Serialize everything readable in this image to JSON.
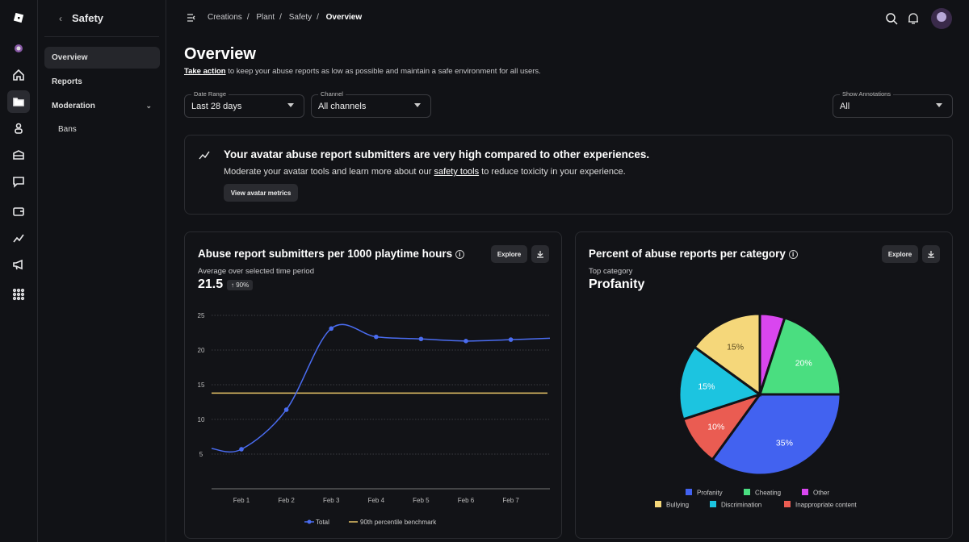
{
  "rail": {
    "icons": [
      "roblox-logo-icon",
      "avatar-icon",
      "home-icon",
      "creations-folder-icon",
      "avatar-items-icon",
      "marketplace-icon",
      "messages-icon",
      "wallet-icon",
      "analytics-icon",
      "ads-megaphone-icon",
      "apps-grid-icon"
    ]
  },
  "sidebar": {
    "back": "‹",
    "title": "Safety",
    "items": [
      {
        "label": "Overview",
        "active": true
      },
      {
        "label": "Reports"
      },
      {
        "label": "Moderation",
        "chevron": "⌄"
      },
      {
        "label": "Bans"
      }
    ]
  },
  "breadcrumb": [
    "Creations",
    "Plant",
    "Safety",
    "Overview"
  ],
  "breadcrumb_sep": "/",
  "page": {
    "title": "Overview",
    "link": "Take action",
    "subtitle": " to keep your abuse reports as low as possible and maintain a safe environment for all users."
  },
  "filters": [
    {
      "label": "Date Range",
      "value": "Last 28 days"
    },
    {
      "label": "Channel",
      "value": "All channels"
    },
    {
      "label": "Show Annotations",
      "value": "All"
    }
  ],
  "banner": {
    "heading": "Your avatar abuse report submitters are very high compared to other experiences.",
    "text_before": "Moderate your avatar tools and learn more about our ",
    "link": "safety tools",
    "text_after": " to reduce toxicity in your experience.",
    "button": "View avatar metrics"
  },
  "line_card": {
    "title": "Abuse report submitters per 1000 playtime hours",
    "explore": "Explore",
    "subtitle": "Average over selected time period",
    "value": "21.5",
    "change": "↑ 90%"
  },
  "pie_card": {
    "title": "Percent of abuse reports per category",
    "explore": "Explore",
    "subtitle": "Top category",
    "value": "Profanity"
  },
  "colors": {
    "total": "#4a6cf0",
    "benchmark": "#e8c468",
    "accent": "#ffffff"
  },
  "chart_data": [
    {
      "type": "line",
      "x": [
        "Feb 1",
        "Feb 2",
        "Feb 3",
        "Feb 4",
        "Feb 5",
        "Feb 6",
        "Feb 7"
      ],
      "yticks": [
        5,
        10,
        15,
        20,
        25
      ],
      "ylim": [
        0,
        25
      ],
      "grid": true,
      "legend": "bottom",
      "series": [
        {
          "name": "Total",
          "values": [
            5.7,
            11.4,
            23.1,
            21.9,
            21.6,
            21.3,
            21.5
          ],
          "color": "#4a6cf0"
        },
        {
          "name": "90th percentile benchmark",
          "values": [
            13.8,
            13.8,
            13.8,
            13.8,
            13.8,
            13.8,
            13.8
          ],
          "color": "#e8c468"
        }
      ]
    },
    {
      "type": "pie",
      "legend": "bottom",
      "slices": [
        {
          "name": "Profanity",
          "value": 35,
          "label": "35%",
          "color": "#4262f0"
        },
        {
          "name": "Inappropriate content",
          "value": 10,
          "label": "10%",
          "color": "#ea5c52"
        },
        {
          "name": "Discrimination",
          "value": 15,
          "label": "15%",
          "color": "#1cc4e0"
        },
        {
          "name": "Bullying",
          "value": 15,
          "label": "15%",
          "color": "#f5d77a"
        },
        {
          "name": "Other",
          "value": 5,
          "label": "",
          "color": "#d946ef"
        },
        {
          "name": "Cheating",
          "value": 20,
          "label": "20%",
          "color": "#4ade80"
        }
      ],
      "legend_order": [
        "Profanity",
        "Cheating",
        "Other",
        "Bullying",
        "Discrimination",
        "Inappropriate content"
      ]
    }
  ]
}
